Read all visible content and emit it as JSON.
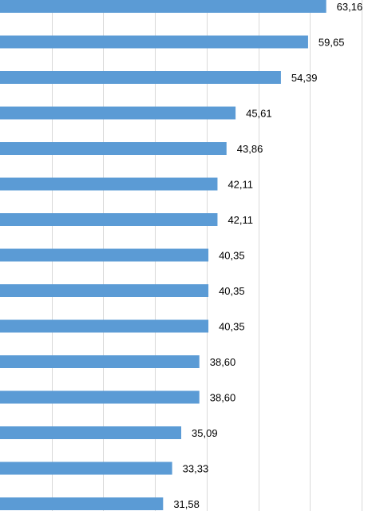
{
  "chart_data": {
    "type": "bar",
    "orientation": "horizontal",
    "values": [
      63.16,
      59.65,
      54.39,
      45.61,
      43.86,
      42.11,
      42.11,
      40.35,
      40.35,
      40.35,
      38.6,
      38.6,
      35.09,
      33.33,
      31.58
    ],
    "labels": [
      "63,16",
      "59,65",
      "54,39",
      "45,61",
      "43,86",
      "42,11",
      "42,11",
      "40,35",
      "40,35",
      "40,35",
      "38,60",
      "38,60",
      "35,09",
      "33,33",
      "31,58"
    ],
    "xlim": [
      0,
      70
    ],
    "gridlines": [
      10,
      20,
      30,
      40,
      50,
      60,
      70
    ],
    "grid": true,
    "legend": "none",
    "bar_color": "#5b9bd5",
    "grid_color": "#d9d9d9"
  }
}
